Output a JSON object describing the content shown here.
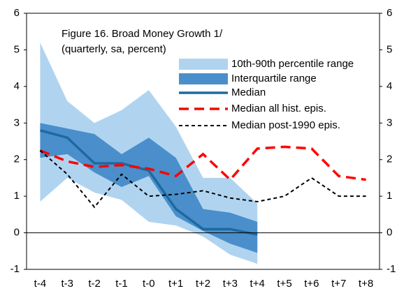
{
  "chart_data": {
    "type": "line",
    "title": "Figure 16. Broad Money Growth 1/",
    "subtitle": "(quarterly, sa, percent)",
    "categories": [
      "t-4",
      "t-3",
      "t-2",
      "t-1",
      "t-0",
      "t+1",
      "t+2",
      "t+3",
      "t+4",
      "t+5",
      "t+6",
      "t+7",
      "t+8"
    ],
    "ylim": [
      -1,
      6
    ],
    "yticks": [
      -1,
      0,
      1,
      2,
      3,
      4,
      5,
      6
    ],
    "y2lim": [
      -1,
      6
    ],
    "y2ticks": [
      -1,
      0,
      1,
      2,
      3,
      4,
      5,
      6
    ],
    "grid": false,
    "series": [
      {
        "name": "10th-90th percentile range",
        "color": "#b0d4f0",
        "kind": "band",
        "low": [
          0.85,
          1.5,
          1.1,
          0.9,
          0.3,
          0.2,
          -0.1,
          -0.6,
          -0.85,
          null,
          null,
          null,
          null
        ],
        "high": [
          5.2,
          3.6,
          3.0,
          3.35,
          3.9,
          2.9,
          1.5,
          1.5,
          0.8,
          null,
          null,
          null,
          null
        ]
      },
      {
        "name": "Interquartile range",
        "color": "#4a8fcb",
        "kind": "band",
        "low": [
          2.05,
          2.15,
          1.65,
          1.25,
          1.55,
          0.45,
          0.05,
          -0.3,
          -0.55,
          null,
          null,
          null,
          null
        ],
        "high": [
          3.0,
          2.85,
          2.7,
          2.15,
          2.6,
          2.05,
          0.65,
          0.55,
          0.3,
          null,
          null,
          null,
          null
        ]
      },
      {
        "name": "Median",
        "color": "#1d6aa0",
        "kind": "line",
        "style": "solid",
        "values": [
          2.8,
          2.6,
          1.9,
          1.9,
          1.7,
          0.65,
          0.1,
          0.1,
          -0.05,
          null,
          null,
          null,
          null
        ]
      },
      {
        "name": "Median all hist. epis.",
        "color": "#ff0000",
        "kind": "line",
        "style": "dashed",
        "values": [
          2.25,
          1.95,
          1.8,
          1.85,
          1.75,
          1.55,
          2.15,
          1.45,
          2.3,
          2.35,
          2.3,
          1.55,
          1.45
        ]
      },
      {
        "name": "Median post-1990 epis.",
        "color": "#000000",
        "kind": "line",
        "style": "dotted",
        "values": [
          2.25,
          1.6,
          0.7,
          1.6,
          1.0,
          1.05,
          1.15,
          0.95,
          0.85,
          1.0,
          1.5,
          1.0,
          1.0
        ]
      }
    ]
  }
}
